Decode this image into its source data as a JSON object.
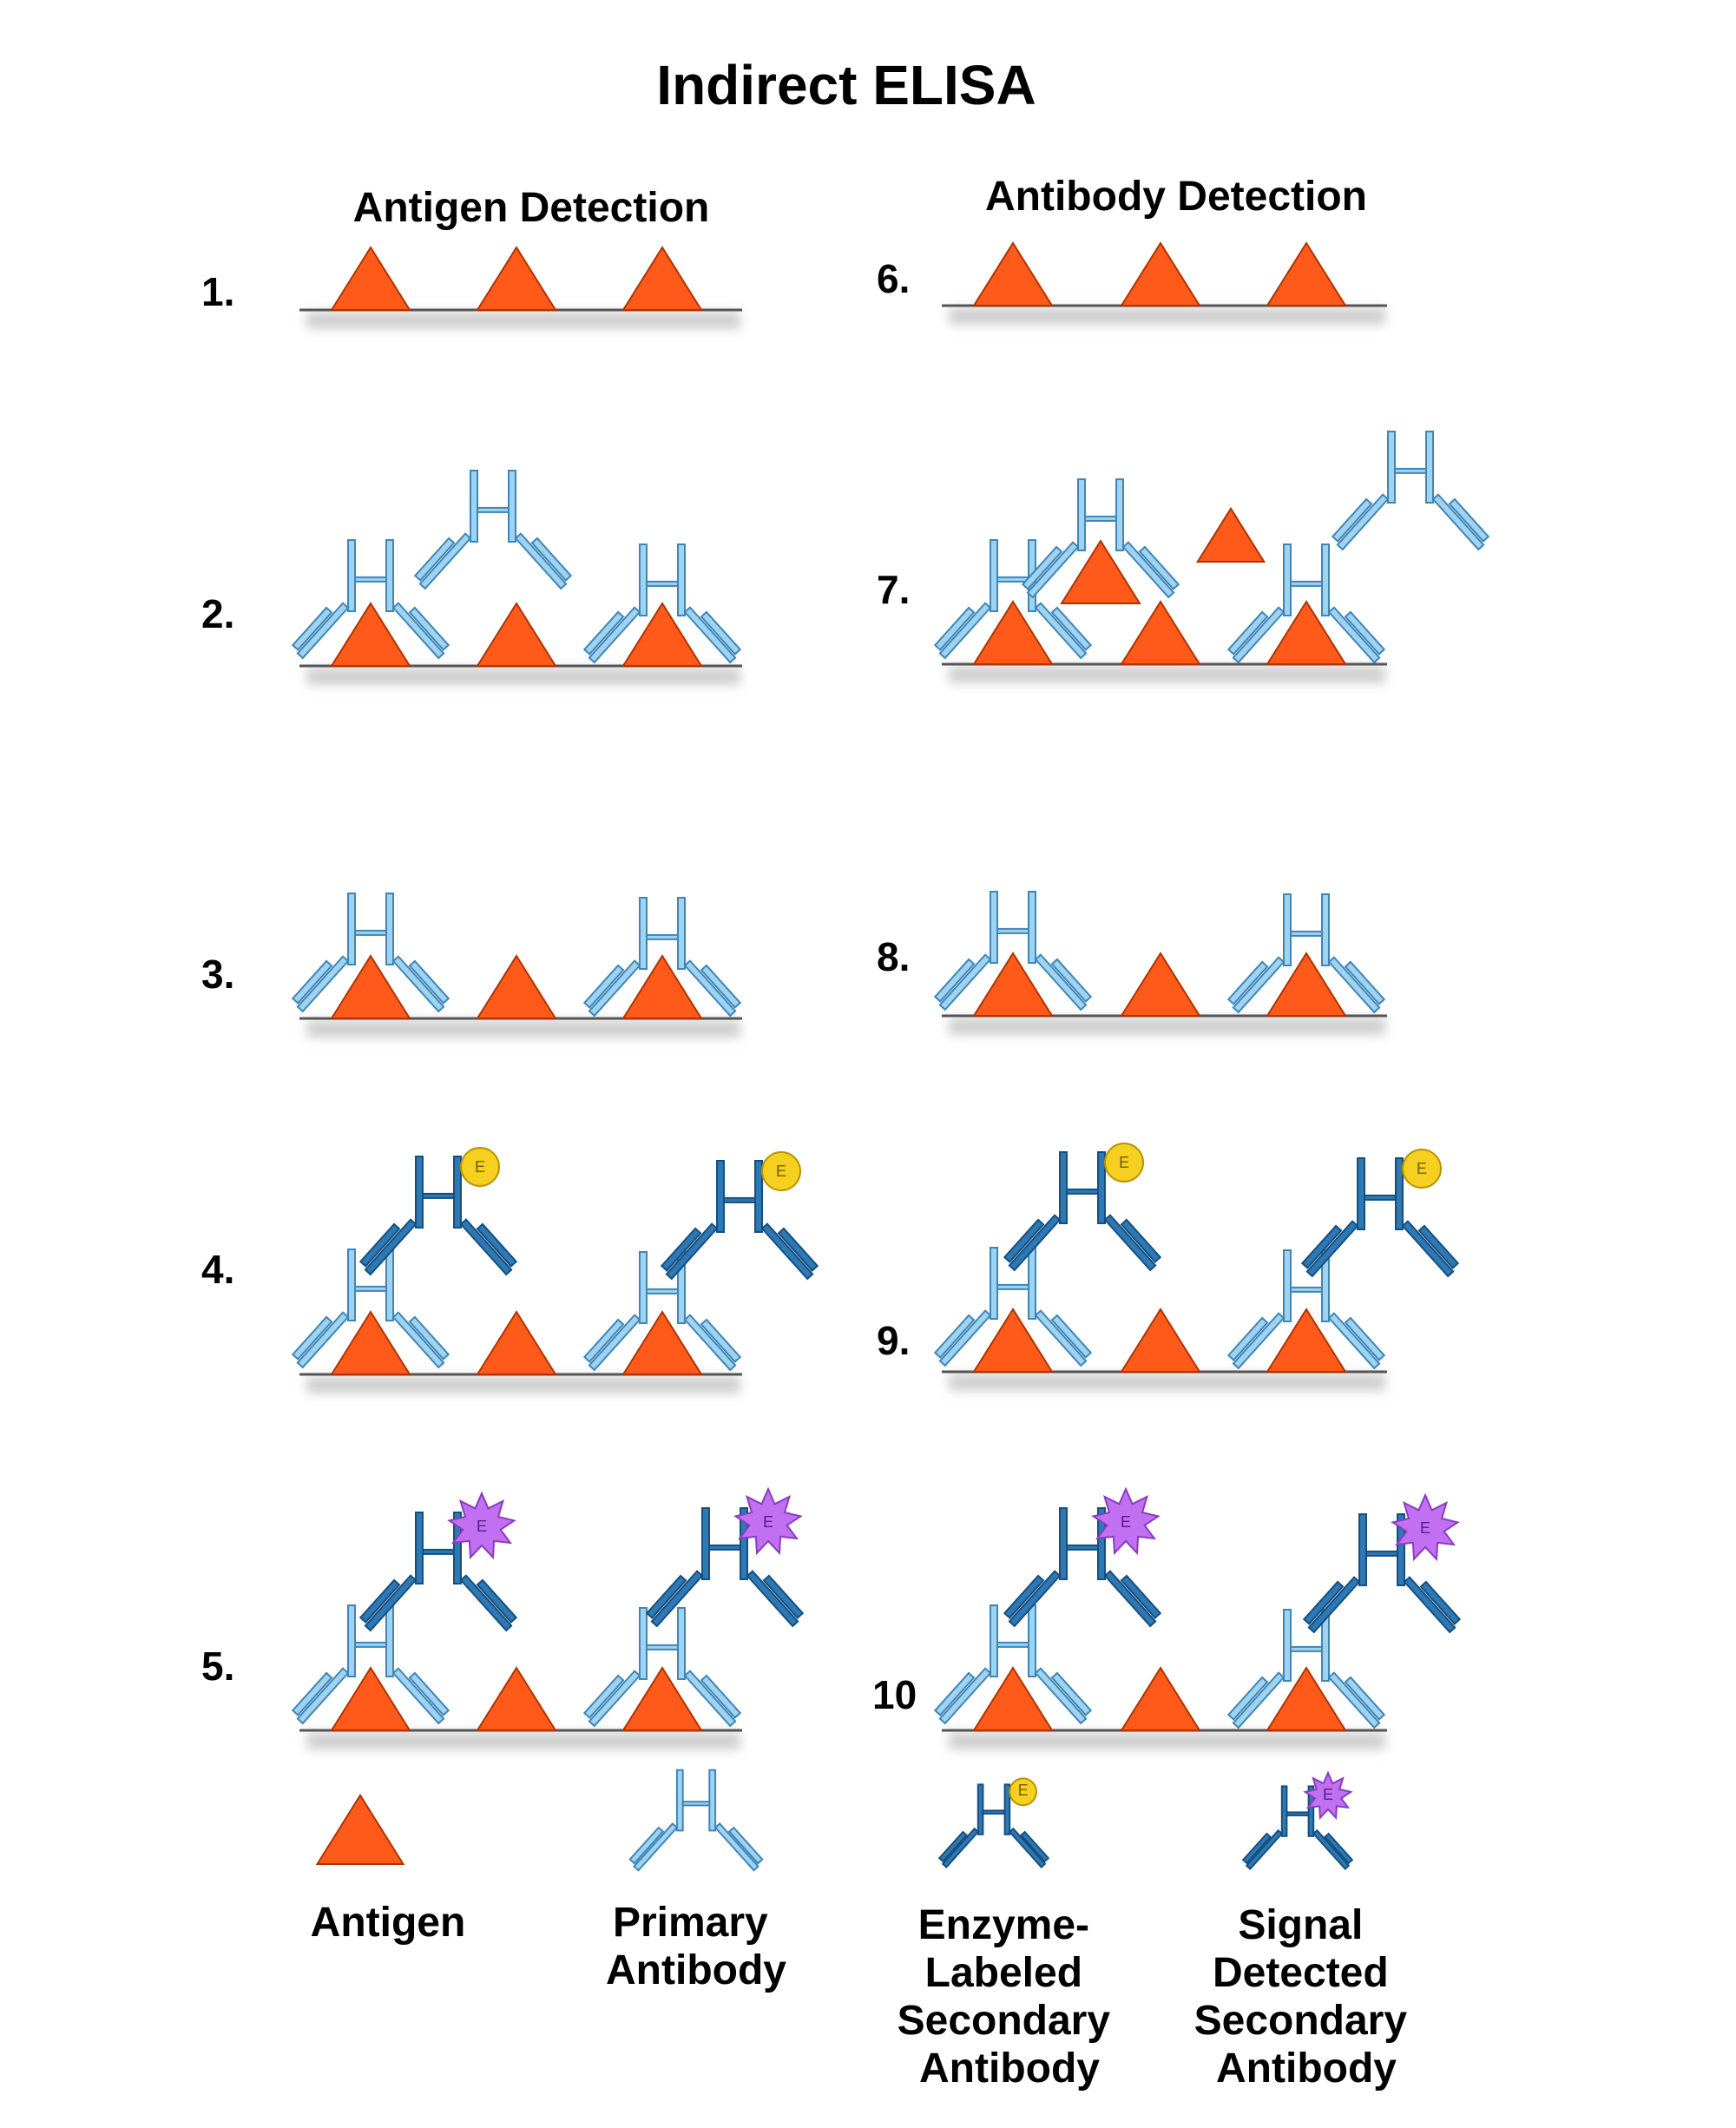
{
  "title": "Indirect ELISA",
  "columns": [
    {
      "heading": "Antigen Detection"
    },
    {
      "heading": "Antibody Detection"
    }
  ],
  "steps": [
    {
      "label": "1."
    },
    {
      "label": "2."
    },
    {
      "label": "3."
    },
    {
      "label": "4."
    },
    {
      "label": "5."
    },
    {
      "label": "6."
    },
    {
      "label": "7."
    },
    {
      "label": "8."
    },
    {
      "label": "9."
    },
    {
      "label": "10"
    }
  ],
  "legend": [
    {
      "lines": [
        "Antigen"
      ]
    },
    {
      "lines": [
        "Primary",
        "Antibody"
      ]
    },
    {
      "lines": [
        "Enzyme-",
        "Labeled",
        "Secondary",
        "Antibody"
      ]
    },
    {
      "lines": [
        "Signal",
        "Detected",
        "Secondary",
        "Antibody"
      ]
    }
  ],
  "enzyme_letter": "E",
  "colors": {
    "antigen": "#ff5a1a",
    "antigen_stroke": "#b03300",
    "primary_antibody": "#9fd3f0",
    "primary_antibody_stroke": "#3f86b8",
    "secondary_antibody": "#2e79b4",
    "secondary_antibody_stroke": "#154f80",
    "enzyme": "#f5d020",
    "enzyme_stroke": "#b89400",
    "signal": "#c070f0",
    "signal_stroke": "#8a3cc0",
    "plate_line": "#555555",
    "plate_shadow": "#cfcfcf"
  }
}
